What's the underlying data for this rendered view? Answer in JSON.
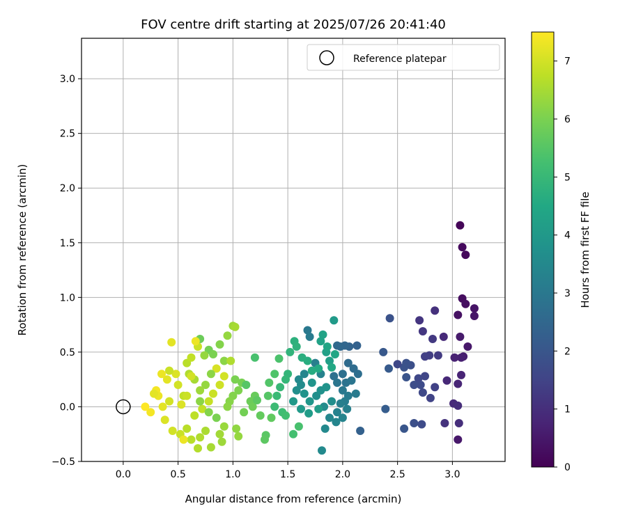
{
  "chart_data": {
    "type": "scatter",
    "title": "FOV centre drift starting at 2025/07/26 20:41:40",
    "xlabel": "Angular distance from reference (arcmin)",
    "ylabel": "Rotation from reference (arcmin)",
    "xlim": [
      -0.38,
      3.48
    ],
    "ylim": [
      -0.5,
      3.37
    ],
    "xticks": [
      "0.0",
      "0.5",
      "1.0",
      "1.5",
      "2.0",
      "2.5",
      "3.0"
    ],
    "yticks": [
      "−0.5",
      "0.0",
      "0.5",
      "1.0",
      "1.5",
      "2.0",
      "2.5",
      "3.0"
    ],
    "grid": true,
    "legend": {
      "placement": "top-right",
      "label": "Reference platepar"
    },
    "reference_point": {
      "x": 0.0,
      "y": 0.0
    },
    "colorbar": {
      "label": "Hours from first FF file",
      "range": [
        0,
        7.5
      ],
      "ticks": [
        "0",
        "1",
        "2",
        "3",
        "4",
        "5",
        "6",
        "7"
      ],
      "colormap": "viridis"
    },
    "points": [
      [
        3.07,
        1.66,
        0.1
      ],
      [
        3.09,
        1.46,
        0.2
      ],
      [
        3.12,
        1.39,
        0.15
      ],
      [
        3.09,
        0.99,
        0.25
      ],
      [
        3.12,
        0.94,
        0.3
      ],
      [
        3.05,
        0.84,
        0.35
      ],
      [
        3.2,
        0.9,
        0.4
      ],
      [
        3.2,
        0.83,
        0.45
      ],
      [
        3.14,
        0.55,
        0.5
      ],
      [
        3.07,
        0.64,
        0.55
      ],
      [
        3.1,
        0.46,
        0.6
      ],
      [
        3.08,
        0.45,
        0.65
      ],
      [
        3.02,
        0.45,
        0.7
      ],
      [
        3.08,
        0.29,
        0.75
      ],
      [
        3.05,
        0.21,
        0.8
      ],
      [
        2.95,
        0.24,
        0.85
      ],
      [
        3.01,
        0.03,
        0.9
      ],
      [
        3.05,
        0.01,
        0.95
      ],
      [
        3.06,
        -0.15,
        1.0
      ],
      [
        3.05,
        -0.3,
        0.5
      ],
      [
        2.93,
        -0.15,
        1.1
      ],
      [
        2.84,
        0.88,
        1.05
      ],
      [
        2.7,
        0.79,
        1.15
      ],
      [
        2.73,
        0.69,
        1.2
      ],
      [
        2.82,
        0.62,
        1.25
      ],
      [
        2.92,
        0.64,
        0.9
      ],
      [
        2.87,
        0.47,
        1.3
      ],
      [
        2.79,
        0.47,
        1.35
      ],
      [
        2.75,
        0.46,
        1.4
      ],
      [
        2.84,
        0.18,
        1.45
      ],
      [
        2.8,
        0.08,
        1.5
      ],
      [
        2.75,
        0.28,
        1.55
      ],
      [
        2.69,
        0.26,
        1.6
      ],
      [
        2.73,
        0.13,
        1.65
      ],
      [
        2.71,
        0.2,
        1.7
      ],
      [
        2.65,
        0.2,
        1.75
      ],
      [
        2.62,
        0.38,
        1.8
      ],
      [
        2.58,
        0.4,
        1.85
      ],
      [
        2.56,
        0.36,
        1.9
      ],
      [
        2.58,
        0.27,
        1.95
      ],
      [
        2.5,
        0.39,
        1.6
      ],
      [
        2.72,
        -0.16,
        1.7
      ],
      [
        2.65,
        -0.15,
        1.8
      ],
      [
        2.56,
        -0.2,
        2.0
      ],
      [
        2.43,
        0.81,
        1.9
      ],
      [
        2.37,
        0.5,
        2.05
      ],
      [
        2.42,
        0.35,
        2.1
      ],
      [
        2.39,
        -0.02,
        2.2
      ],
      [
        2.16,
        -0.22,
        2.3
      ],
      [
        2.13,
        0.56,
        2.35
      ],
      [
        2.06,
        0.55,
        2.4
      ],
      [
        2.02,
        0.56,
        2.45
      ],
      [
        1.98,
        0.55,
        2.5
      ],
      [
        1.95,
        0.56,
        2.55
      ],
      [
        2.05,
        0.4,
        2.6
      ],
      [
        2.1,
        0.35,
        2.65
      ],
      [
        2.14,
        0.3,
        2.7
      ],
      [
        2.0,
        0.3,
        2.75
      ],
      [
        1.92,
        0.28,
        2.8
      ],
      [
        2.03,
        0.22,
        2.85
      ],
      [
        2.08,
        0.24,
        2.9
      ],
      [
        1.95,
        0.22,
        2.95
      ],
      [
        2.0,
        0.15,
        3.0
      ],
      [
        2.05,
        0.1,
        3.05
      ],
      [
        2.12,
        0.12,
        3.1
      ],
      [
        2.02,
        0.05,
        3.15
      ],
      [
        1.98,
        0.03,
        3.2
      ],
      [
        2.04,
        -0.02,
        3.25
      ],
      [
        1.95,
        -0.05,
        3.3
      ],
      [
        2.0,
        -0.1,
        3.35
      ],
      [
        1.94,
        -0.14,
        3.4
      ],
      [
        1.88,
        -0.1,
        3.45
      ],
      [
        1.84,
        -0.2,
        3.5
      ],
      [
        1.81,
        -0.4,
        3.55
      ],
      [
        1.83,
        0.0,
        3.6
      ],
      [
        1.9,
        0.05,
        3.65
      ],
      [
        1.76,
        0.1,
        3.7
      ],
      [
        1.8,
        0.15,
        3.75
      ],
      [
        1.85,
        0.18,
        3.8
      ],
      [
        1.72,
        0.22,
        3.85
      ],
      [
        1.68,
        0.7,
        3.0
      ],
      [
        1.7,
        0.64,
        3.1
      ],
      [
        1.75,
        0.4,
        3.2
      ],
      [
        1.8,
        0.3,
        3.3
      ],
      [
        1.65,
        0.3,
        3.4
      ],
      [
        1.6,
        0.25,
        3.5
      ],
      [
        1.62,
        0.2,
        3.6
      ],
      [
        1.58,
        0.15,
        3.7
      ],
      [
        1.65,
        0.12,
        3.8
      ],
      [
        1.7,
        0.05,
        3.9
      ],
      [
        1.55,
        0.05,
        4.0
      ],
      [
        1.62,
        -0.02,
        4.05
      ],
      [
        1.69,
        -0.06,
        4.1
      ],
      [
        1.78,
        -0.02,
        4.15
      ],
      [
        1.88,
        0.42,
        4.2
      ],
      [
        1.85,
        0.5,
        4.25
      ],
      [
        1.8,
        0.6,
        4.3
      ],
      [
        1.82,
        0.66,
        4.35
      ],
      [
        1.92,
        0.79,
        4.05
      ],
      [
        1.86,
        0.55,
        4.4
      ],
      [
        1.93,
        0.48,
        4.45
      ],
      [
        1.9,
        0.36,
        4.5
      ],
      [
        1.78,
        0.35,
        4.55
      ],
      [
        1.72,
        0.33,
        4.6
      ],
      [
        1.68,
        0.42,
        4.65
      ],
      [
        1.63,
        0.45,
        4.7
      ],
      [
        1.56,
        0.6,
        4.75
      ],
      [
        1.58,
        0.55,
        4.8
      ],
      [
        1.52,
        0.5,
        4.85
      ],
      [
        1.5,
        0.3,
        4.9
      ],
      [
        1.48,
        0.25,
        4.95
      ],
      [
        1.43,
        0.18,
        5.0
      ],
      [
        1.4,
        0.1,
        5.05
      ],
      [
        1.38,
        0.0,
        5.1
      ],
      [
        1.45,
        -0.05,
        5.15
      ],
      [
        1.48,
        -0.08,
        5.2
      ],
      [
        1.55,
        -0.25,
        5.25
      ],
      [
        1.6,
        -0.18,
        5.3
      ],
      [
        1.42,
        0.44,
        5.35
      ],
      [
        1.38,
        0.3,
        5.4
      ],
      [
        1.33,
        0.22,
        5.45
      ],
      [
        1.32,
        0.1,
        5.5
      ],
      [
        1.3,
        -0.26,
        5.55
      ],
      [
        1.29,
        -0.3,
        5.6
      ],
      [
        1.35,
        -0.1,
        5.65
      ],
      [
        1.25,
        -0.08,
        5.7
      ],
      [
        1.2,
        0.1,
        5.75
      ],
      [
        1.16,
        0.05,
        5.8
      ],
      [
        1.18,
        0.0,
        5.85
      ],
      [
        1.1,
        -0.05,
        5.9
      ],
      [
        1.08,
        0.22,
        5.95
      ],
      [
        1.02,
        0.25,
        6.0
      ],
      [
        1.05,
        0.15,
        6.05
      ],
      [
        1.0,
        0.1,
        6.1
      ],
      [
        0.97,
        0.05,
        6.15
      ],
      [
        0.95,
        0.0,
        6.2
      ],
      [
        1.03,
        -0.2,
        6.25
      ],
      [
        1.05,
        -0.27,
        6.3
      ],
      [
        0.92,
        -0.18,
        6.35
      ],
      [
        0.9,
        -0.32,
        6.4
      ],
      [
        0.88,
        -0.25,
        6.45
      ],
      [
        0.8,
        -0.37,
        6.5
      ],
      [
        0.75,
        -0.22,
        6.55
      ],
      [
        0.7,
        -0.28,
        6.6
      ],
      [
        0.68,
        -0.38,
        6.65
      ],
      [
        0.62,
        -0.3,
        6.7
      ],
      [
        0.65,
        -0.08,
        6.75
      ],
      [
        0.72,
        -0.02,
        6.8
      ],
      [
        0.78,
        0.05,
        6.85
      ],
      [
        0.82,
        0.12,
        6.9
      ],
      [
        0.88,
        0.2,
        6.95
      ],
      [
        0.92,
        0.28,
        7.0
      ],
      [
        0.85,
        0.35,
        7.05
      ],
      [
        0.8,
        0.3,
        6.2
      ],
      [
        0.75,
        0.2,
        6.3
      ],
      [
        0.7,
        0.15,
        6.4
      ],
      [
        0.65,
        0.25,
        6.5
      ],
      [
        0.6,
        0.3,
        6.6
      ],
      [
        0.58,
        0.4,
        6.7
      ],
      [
        0.62,
        0.45,
        6.8
      ],
      [
        0.68,
        0.55,
        6.9
      ],
      [
        0.7,
        0.62,
        5.8
      ],
      [
        0.78,
        0.52,
        5.9
      ],
      [
        0.82,
        0.48,
        6.0
      ],
      [
        0.88,
        0.57,
        6.1
      ],
      [
        0.92,
        0.42,
        6.2
      ],
      [
        0.95,
        0.65,
        6.3
      ],
      [
        1.0,
        0.74,
        6.4
      ],
      [
        1.02,
        0.73,
        6.5
      ],
      [
        0.98,
        0.42,
        6.6
      ],
      [
        1.12,
        0.2,
        5.5
      ],
      [
        1.2,
        0.45,
        5.3
      ],
      [
        1.22,
        0.06,
        5.6
      ],
      [
        0.85,
        -0.1,
        6.0
      ],
      [
        0.78,
        -0.05,
        6.1
      ],
      [
        0.7,
        0.05,
        6.2
      ],
      [
        0.55,
        0.1,
        6.8
      ],
      [
        0.5,
        0.2,
        7.0
      ],
      [
        0.48,
        0.3,
        7.1
      ],
      [
        0.42,
        0.33,
        6.9
      ],
      [
        0.4,
        0.25,
        7.2
      ],
      [
        0.35,
        0.3,
        7.3
      ],
      [
        0.3,
        0.15,
        7.4
      ],
      [
        0.32,
        0.1,
        7.3
      ],
      [
        0.28,
        0.12,
        7.2
      ],
      [
        0.25,
        -0.05,
        7.4
      ],
      [
        0.2,
        0.0,
        7.5
      ],
      [
        0.38,
        -0.12,
        7.1
      ],
      [
        0.45,
        -0.22,
        7.0
      ],
      [
        0.52,
        -0.25,
        6.9
      ],
      [
        0.55,
        -0.3,
        7.3
      ],
      [
        0.58,
        -0.2,
        6.7
      ],
      [
        0.44,
        0.59,
        7.2
      ],
      [
        0.62,
        0.28,
        7.0
      ],
      [
        0.53,
        0.02,
        7.1
      ],
      [
        0.42,
        0.05,
        7.0
      ],
      [
        0.36,
        0.0,
        7.2
      ],
      [
        0.66,
        0.6,
        7.3
      ],
      [
        0.74,
        0.47,
        6.3
      ],
      [
        0.58,
        0.1,
        6.9
      ]
    ]
  }
}
